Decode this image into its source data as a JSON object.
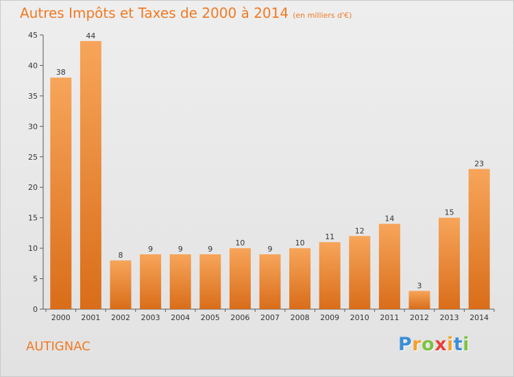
{
  "title": "Autres Impôts et Taxes de 2000 à 2014",
  "subtitle": "(en milliers d'€)",
  "commune": "AUTIGNAC",
  "logo": {
    "letters": [
      "P",
      "r",
      "o",
      "x",
      "i",
      "t",
      "i"
    ],
    "colors": [
      "#3a8ed6",
      "#f5a02a",
      "#7cc243",
      "#e8403c",
      "#f5a02a",
      "#3a8ed6",
      "#7cc243"
    ]
  },
  "colors": {
    "accent": "#f07a22",
    "bar_top": "#f7a55a",
    "bar_bottom": "#d96d19"
  },
  "chart_data": {
    "type": "bar",
    "title": "Autres Impôts et Taxes de 2000 à 2014",
    "categories": [
      "2000",
      "2001",
      "2002",
      "2003",
      "2004",
      "2005",
      "2006",
      "2007",
      "2008",
      "2009",
      "2010",
      "2011",
      "2012",
      "2013",
      "2014"
    ],
    "values": [
      38,
      44,
      8,
      9,
      9,
      9,
      10,
      9,
      10,
      11,
      12,
      14,
      3,
      15,
      23
    ],
    "ylim": [
      0,
      45
    ],
    "yticks": [
      0,
      5,
      10,
      15,
      20,
      25,
      30,
      35,
      40,
      45
    ],
    "grid": false,
    "data_labels": true
  }
}
